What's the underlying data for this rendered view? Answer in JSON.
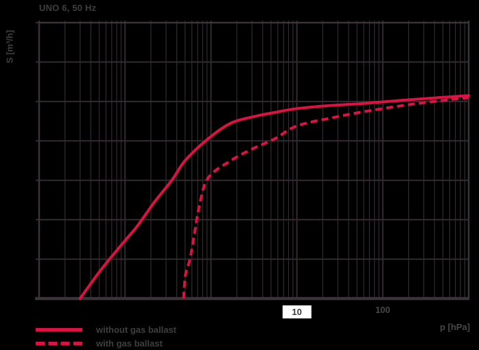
{
  "page": {
    "background": "#000000"
  },
  "chart": {
    "title": "UNO 6, 50 Hz",
    "ylabel": "S [m³/h]",
    "xlabel": "p [hPa]"
  },
  "legend": {
    "items": [
      {
        "label": "without gas ballast",
        "style": "solid"
      },
      {
        "label": "with gas ballast",
        "style": "dashed"
      }
    ]
  },
  "colors": {
    "curve": "#dc1243",
    "grid": "#332b30",
    "border": "#3b3338",
    "text": "#3f3f3f",
    "tick_highlight_bg": "#ffffff",
    "background": "#000000"
  },
  "chart_data": {
    "type": "line",
    "title": "UNO 6, 50 Hz",
    "xlabel": "p [hPa]",
    "ylabel": "S [m³/h]",
    "x_scale": "log",
    "x_range": [
      0.01,
      1000
    ],
    "y_scale": "linear",
    "y_range": [
      0,
      7
    ],
    "y_grid_step": 1,
    "grid": true,
    "legend_position": "bottom-left",
    "x_ticks": [
      {
        "value": 10,
        "label": "10",
        "highlight": true
      },
      {
        "value": 100,
        "label": "100",
        "highlight": false
      }
    ],
    "series": [
      {
        "name": "without gas ballast",
        "line_style": "solid",
        "color": "#dc1243",
        "points": [
          [
            0.03,
            0
          ],
          [
            0.048,
            0.62
          ],
          [
            0.066,
            1.0
          ],
          [
            0.1,
            1.47
          ],
          [
            0.14,
            1.85
          ],
          [
            0.22,
            2.45
          ],
          [
            0.35,
            3.0
          ],
          [
            0.5,
            3.5
          ],
          [
            0.92,
            4.05
          ],
          [
            1.7,
            4.45
          ],
          [
            3.2,
            4.62
          ],
          [
            5.5,
            4.72
          ],
          [
            10,
            4.82
          ],
          [
            25,
            4.9
          ],
          [
            60,
            4.95
          ],
          [
            220,
            5.05
          ],
          [
            1000,
            5.15
          ]
        ]
      },
      {
        "name": "with gas ballast",
        "line_style": "dashed",
        "color": "#dc1243",
        "points": [
          [
            0.48,
            0
          ],
          [
            0.505,
            0.6
          ],
          [
            0.57,
            1.0
          ],
          [
            0.655,
            1.75
          ],
          [
            0.725,
            2.3
          ],
          [
            0.92,
            3.05
          ],
          [
            1.7,
            3.5
          ],
          [
            3.2,
            3.82
          ],
          [
            5.5,
            4.05
          ],
          [
            10,
            4.38
          ],
          [
            25,
            4.58
          ],
          [
            60,
            4.74
          ],
          [
            220,
            4.93
          ],
          [
            1000,
            5.1
          ]
        ]
      }
    ]
  }
}
